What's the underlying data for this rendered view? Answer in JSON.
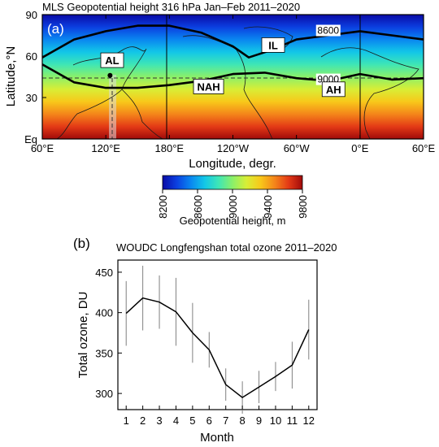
{
  "chart_data": [
    {
      "type": "heatmap",
      "panel_label": "(a)",
      "title": "MLS   Geopotential height   316 hPa   Jan–Feb   2011–2020",
      "xlabel": "Longitude, degr.",
      "ylabel": "Latitude,°N",
      "x_tick_labels": [
        "60°E",
        "120°E",
        "180°E",
        "120°W",
        "60°W",
        "0°E",
        "60°E"
      ],
      "y_tick_labels": [
        "Eq",
        "30",
        "60",
        "90"
      ],
      "y_ticks": [
        0,
        30,
        60,
        90
      ],
      "xlim": [
        60,
        420
      ],
      "ylim": [
        0,
        90
      ],
      "contours": [
        {
          "label": "8600",
          "points": [
            [
              60,
              59
            ],
            [
              90,
              72
            ],
            [
              120,
              78
            ],
            [
              150,
              82
            ],
            [
              180,
              82
            ],
            [
              210,
              77
            ],
            [
              240,
              67
            ],
            [
              255,
              59
            ],
            [
              275,
              64
            ],
            [
              300,
              72
            ],
            [
              330,
              75
            ],
            [
              360,
              78
            ],
            [
              390,
              75
            ],
            [
              420,
              72
            ]
          ]
        },
        {
          "label": "9000",
          "points": [
            [
              60,
              54
            ],
            [
              90,
              41
            ],
            [
              120,
              37
            ],
            [
              150,
              37
            ],
            [
              180,
              39
            ],
            [
              210,
              42
            ],
            [
              240,
              47
            ],
            [
              270,
              48
            ],
            [
              300,
              44
            ],
            [
              330,
              42
            ],
            [
              360,
              47
            ],
            [
              390,
              43
            ],
            [
              420,
              44
            ]
          ]
        }
      ],
      "region_labels": [
        {
          "text": "AL",
          "x": 126,
          "y": 57
        },
        {
          "text": "IL",
          "x": 278,
          "y": 68
        },
        {
          "text": "NAH",
          "x": 217,
          "y": 38
        },
        {
          "text": "AH",
          "x": 335,
          "y": 36
        }
      ],
      "reference_lines": {
        "latitude": 46,
        "longitude": 125
      },
      "marker": {
        "x": 124,
        "y": 46
      }
    },
    {
      "type": "colorbar",
      "label": "Geopotential height, m",
      "tick_labels": [
        "8200",
        "8600",
        "9000",
        "9400",
        "9800"
      ],
      "range": [
        8200,
        9800
      ],
      "colormap": [
        "#0a0aa6",
        "#0b3fe0",
        "#0a86f0",
        "#12c6e8",
        "#3ee6b6",
        "#8af06a",
        "#d8ee36",
        "#f8c81a",
        "#f4861a",
        "#e43a16",
        "#a00a0a"
      ]
    },
    {
      "type": "line",
      "panel_label": "(b)",
      "title": "WOUDC Longfengshan total ozone   2011–2020",
      "xlabel": "Month",
      "ylabel": "Total ozone, DU",
      "x": [
        1,
        2,
        3,
        4,
        5,
        6,
        7,
        8,
        9,
        10,
        11,
        12
      ],
      "y": [
        399,
        418,
        413,
        401,
        375,
        354,
        311,
        295,
        308,
        321,
        335,
        379
      ],
      "error": [
        40,
        40,
        33,
        42,
        37,
        22,
        20,
        20,
        20,
        18,
        29,
        37
      ],
      "x_tick_labels": [
        "1",
        "2",
        "3",
        "4",
        "5",
        "6",
        "7",
        "8",
        "9",
        "10",
        "11",
        "12"
      ],
      "y_tick_labels": [
        "300",
        "350",
        "400",
        "450"
      ],
      "y_ticks": [
        300,
        350,
        400,
        450
      ],
      "xlim": [
        0.5,
        12.5
      ],
      "ylim": [
        280,
        465
      ]
    }
  ],
  "colors": {
    "line": "#000000",
    "errorbar": "#808080",
    "dashed": "#333333",
    "highlight_band": "#dcdcdc"
  }
}
